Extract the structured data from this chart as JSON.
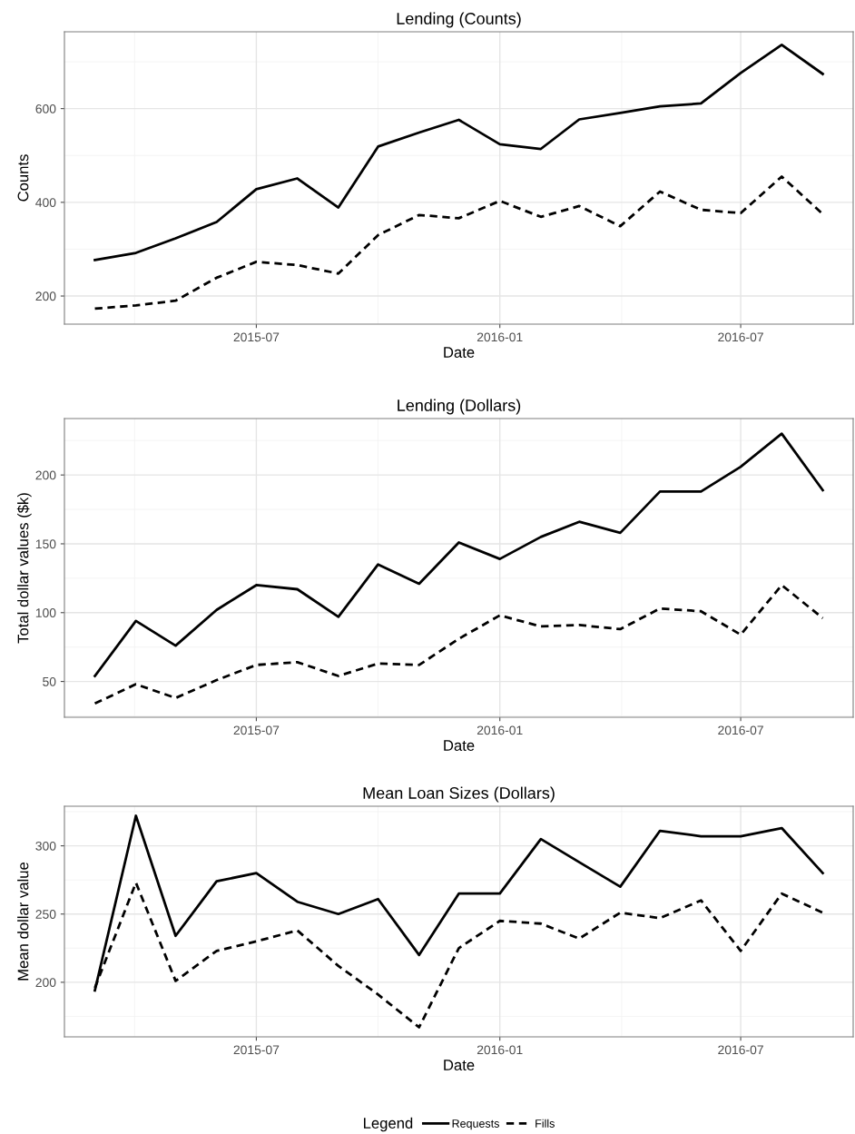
{
  "chart_data": [
    {
      "type": "line",
      "title": "Lending (Counts)",
      "xlabel": "Date",
      "ylabel": "Counts",
      "x": [
        "2015-03",
        "2015-04",
        "2015-05",
        "2015-06",
        "2015-07",
        "2015-08",
        "2015-09",
        "2015-10",
        "2015-11",
        "2015-12",
        "2016-01",
        "2016-02",
        "2016-03",
        "2016-04",
        "2016-05",
        "2016-06",
        "2016-07",
        "2016-08",
        "2016-09"
      ],
      "series": [
        {
          "color": "#000000",
          "line_style": "solid",
          "values": [
            277,
            292,
            323,
            358,
            428,
            451,
            389,
            519,
            549,
            576,
            524,
            514,
            577,
            591,
            605,
            611,
            676,
            736,
            674
          ]
        },
        {
          "color": "#000000",
          "line_style": "dashed",
          "values": [
            173,
            180,
            190,
            239,
            273,
            266,
            248,
            330,
            373,
            366,
            403,
            369,
            392,
            349,
            423,
            384,
            377,
            455,
            375
          ]
        }
      ],
      "xlim": [
        "2015-02-06",
        "2016-09-24"
      ],
      "xticks": [
        "2015-07",
        "2016-01",
        "2016-07"
      ],
      "ylim": [
        140,
        764
      ],
      "yticks": [
        200,
        400,
        600
      ],
      "grid": true,
      "legend": false
    },
    {
      "type": "line",
      "title": "Lending (Dollars)",
      "xlabel": "Date",
      "ylabel": "Total dollar values ($k)",
      "x": [
        "2015-03",
        "2015-04",
        "2015-05",
        "2015-06",
        "2015-07",
        "2015-08",
        "2015-09",
        "2015-10",
        "2015-11",
        "2015-12",
        "2016-01",
        "2016-02",
        "2016-03",
        "2016-04",
        "2016-05",
        "2016-06",
        "2016-07",
        "2016-08",
        "2016-09"
      ],
      "series": [
        {
          "color": "#000000",
          "line_style": "solid",
          "values": [
            54,
            94,
            76,
            102,
            120,
            117,
            97,
            135,
            121,
            151,
            139,
            155,
            166,
            158,
            188,
            188,
            206,
            230,
            189
          ]
        },
        {
          "color": "#000000",
          "line_style": "dashed",
          "values": [
            34,
            48,
            38,
            51,
            62,
            64,
            54,
            63,
            62,
            81,
            98,
            90,
            91,
            88,
            103,
            101,
            84,
            120,
            96
          ]
        }
      ],
      "xlim": [
        "2015-02-06",
        "2016-09-24"
      ],
      "xticks": [
        "2015-07",
        "2016-01",
        "2016-07"
      ],
      "ylim": [
        24,
        241
      ],
      "yticks": [
        50,
        100,
        150,
        200
      ],
      "grid": true,
      "legend": false
    },
    {
      "type": "line",
      "title": "Mean Loan Sizes (Dollars)",
      "xlabel": "Date",
      "ylabel": "Mean dollar value",
      "legend_title": "Legend",
      "x": [
        "2015-03",
        "2015-04",
        "2015-05",
        "2015-06",
        "2015-07",
        "2015-08",
        "2015-09",
        "2015-10",
        "2015-11",
        "2015-12",
        "2016-01",
        "2016-02",
        "2016-03",
        "2016-04",
        "2016-05",
        "2016-06",
        "2016-07",
        "2016-08",
        "2016-09"
      ],
      "series": [
        {
          "name": "Requests",
          "color": "#000000",
          "line_style": "solid",
          "values": [
            194,
            322,
            234,
            274,
            280,
            259,
            250,
            261,
            220,
            265,
            265,
            305,
            288,
            270,
            311,
            307,
            307,
            313,
            280
          ]
        },
        {
          "name": "Fills",
          "color": "#000000",
          "line_style": "dashed",
          "values": [
            196,
            273,
            201,
            223,
            230,
            238,
            212,
            191,
            167,
            225,
            245,
            243,
            232,
            251,
            247,
            260,
            223,
            265,
            251
          ]
        }
      ],
      "xlim": [
        "2015-02-06",
        "2016-09-24"
      ],
      "xticks": [
        "2015-07",
        "2016-01",
        "2016-07"
      ],
      "ylim": [
        160,
        329
      ],
      "yticks": [
        200,
        250,
        300
      ],
      "grid": true,
      "legend": "bottom"
    }
  ]
}
